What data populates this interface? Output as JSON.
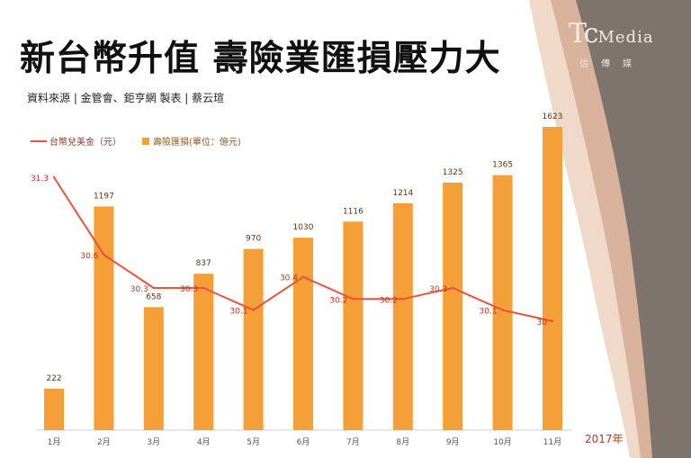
{
  "title": "新台幣升值  壽險業匯損壓力大",
  "source": "資料來源 | 金管會、鉅亨網   製表  |   蔡云瑄",
  "logo": {
    "main_prefix": "Tc",
    "main_suffix": "Media",
    "sub": "信傳媒"
  },
  "colors": {
    "bar": "#f49f37",
    "line": "#e8533f",
    "bar_label": "#5a3512",
    "line_label": "#c8321e",
    "year_label": "#c8321e"
  },
  "chart_data": {
    "type": "bar",
    "categories": [
      "1月",
      "2月",
      "3月",
      "4月",
      "5月",
      "6月",
      "7月",
      "8月",
      "9月",
      "10月",
      "11月"
    ],
    "x_unit": "2017年",
    "series": [
      {
        "name": "壽險匯損(單位：億元)",
        "type": "bar",
        "values": [
          222,
          1197,
          658,
          837,
          970,
          1030,
          1116,
          1214,
          1325,
          1365,
          1623
        ]
      },
      {
        "name": "台幣兌美金（元）",
        "type": "line",
        "values": [
          31.3,
          30.6,
          30.3,
          30.3,
          30.1,
          30.4,
          30.2,
          30.2,
          30.3,
          30.1,
          30
        ]
      }
    ],
    "legend_position": "top-left",
    "grid": false
  }
}
